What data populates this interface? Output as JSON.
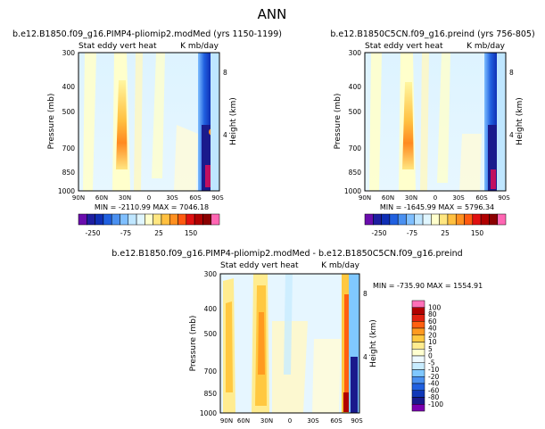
{
  "page_title": "ANN",
  "colors": {
    "colormap_lr": [
      "#6a0dad",
      "#1e1ea0",
      "#0f2fb5",
      "#2060e0",
      "#4a90f0",
      "#7fbfff",
      "#bfe6ff",
      "#e0f6ff",
      "#ffffcc",
      "#ffe680",
      "#ffc040",
      "#ff9020",
      "#ff5a10",
      "#e01010",
      "#b00000",
      "#8b0000",
      "#ff66b3"
    ],
    "colormap_diff": [
      "#7b00b0",
      "#1a1a8c",
      "#1038b8",
      "#2060e0",
      "#4a90f0",
      "#80c8ff",
      "#c8ecff",
      "#eef9ff",
      "#ffffd0",
      "#ffec90",
      "#ffc840",
      "#ff9a20",
      "#ff6010",
      "#e02010",
      "#b00000",
      "#ff70b8"
    ]
  },
  "chart_data": [
    {
      "type": "heatmap",
      "title": "b.e12.B1850.f09_g16.PIMP4-pliomip2.modMed (yrs 1150-1199)",
      "subtitle": "Stat eddy vert heat",
      "units": "K mb/day",
      "ylabel": "Pressure (mb)",
      "right_axis_label": "Height (km)",
      "x_ticks": [
        "90N",
        "60N",
        "30N",
        "0",
        "30S",
        "60S",
        "90S"
      ],
      "y_ticks": [
        "300",
        "400",
        "500",
        "700",
        "850",
        "1000"
      ],
      "right_ticks": [
        "8",
        "4"
      ],
      "ylim": [
        1000,
        300
      ],
      "y_scale": "log",
      "min_max_text": "MIN = -2110.99   MAX = 7046.18",
      "colorbar_labels": [
        "-250",
        "-75",
        "25",
        "150"
      ]
    },
    {
      "type": "heatmap",
      "title": "b.e12.B1850C5CN.f09_g16.preind (yrs 756-805)",
      "subtitle": "Stat eddy vert heat",
      "units": "K mb/day",
      "ylabel": "Pressure (mb)",
      "right_axis_label": "Height (km)",
      "x_ticks": [
        "90N",
        "60N",
        "30N",
        "0",
        "30S",
        "60S",
        "90S"
      ],
      "y_ticks": [
        "300",
        "400",
        "500",
        "700",
        "850",
        "1000"
      ],
      "right_ticks": [
        "8",
        "4"
      ],
      "ylim": [
        1000,
        300
      ],
      "y_scale": "log",
      "min_max_text": "MIN = -1645.99   MAX = 5796.34",
      "colorbar_labels": [
        "-250",
        "-75",
        "25",
        "150"
      ]
    },
    {
      "type": "heatmap",
      "title": "b.e12.B1850.f09_g16.PIMP4-pliomip2.modMed - b.e12.B1850C5CN.f09_g16.preind",
      "subtitle": "Stat eddy vert heat",
      "units": "K mb/day",
      "ylabel": "Pressure (mb)",
      "right_axis_label": "Height (km)",
      "x_ticks": [
        "90N",
        "60N",
        "30N",
        "0",
        "30S",
        "60S",
        "90S"
      ],
      "y_ticks": [
        "300",
        "400",
        "500",
        "700",
        "850",
        "1000"
      ],
      "right_ticks": [
        "8",
        "4"
      ],
      "ylim": [
        1000,
        300
      ],
      "y_scale": "log",
      "min_max_text": "MIN = -735.90   MAX = 1554.91",
      "colorbar_labels": [
        "100",
        "80",
        "60",
        "40",
        "20",
        "10",
        "5",
        "0",
        "-5",
        "-10",
        "-20",
        "-40",
        "-60",
        "-80",
        "-100"
      ]
    }
  ]
}
